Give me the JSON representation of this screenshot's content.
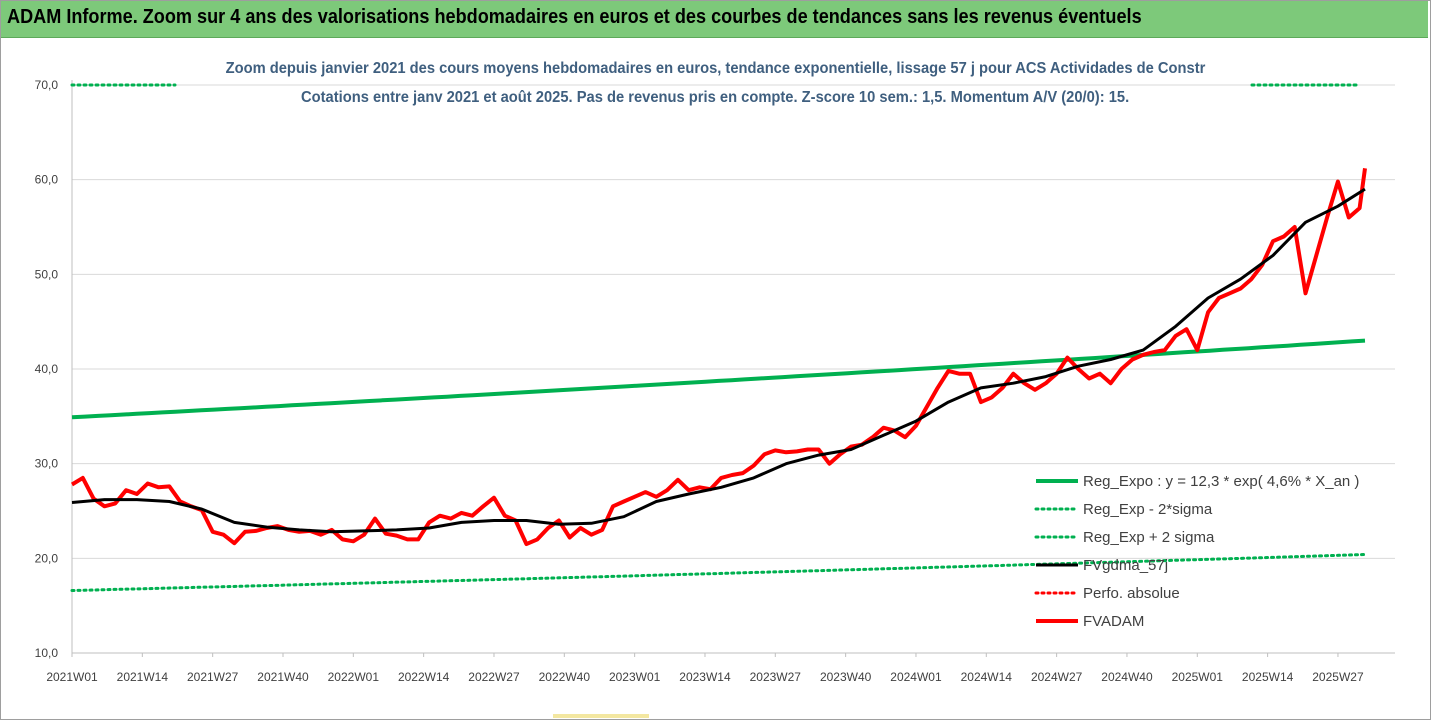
{
  "banner": {
    "title": "ADAM Informe. Zoom sur 4 ans des valorisations hebdomadaires en euros et des courbes de tendances sans les revenus éventuels",
    "color": "#7dc97a"
  },
  "chart_data": {
    "type": "line",
    "title_line1": "Zoom depuis janvier 2021 des cours moyens hebdomadaires en euros, tendance exponentielle, lissage 57 j pour ACS Actividades de Constr",
    "title_line2": "Cotations entre janv 2021 et août 2025. Pas de revenus pris en compte. Z-score 10 sem.: 1,5. Momentum A/V (20/0): 15.",
    "ylim": [
      10,
      70
    ],
    "y_ticks": [
      "10,0",
      "20,0",
      "30,0",
      "40,0",
      "50,0",
      "60,0",
      "70,0"
    ],
    "x_ticks": [
      "2021W01",
      "2021W14",
      "2021W27",
      "2021W40",
      "2022W01",
      "2022W14",
      "2022W27",
      "2022W40",
      "2023W01",
      "2023W14",
      "2023W27",
      "2023W40",
      "2024W01",
      "2024W14",
      "2024W27",
      "2024W40",
      "2025W01",
      "2025W14",
      "2025W27"
    ],
    "x_weeks": [
      0,
      239
    ],
    "grid": true,
    "legend_position": "bottom-right",
    "series": [
      {
        "name": "Reg_Expo : y = 12,3 * exp( 4,6% *  X_an )",
        "color": "#00b050",
        "style": "solid",
        "x": [
          0,
          239
        ],
        "exp_start": 34.9,
        "exp_end": 43.0
      },
      {
        "name": "Reg_Exp - 2*sigma",
        "color": "#00b050",
        "style": "dotted",
        "x": [
          0,
          239
        ],
        "exp_start": 16.6,
        "exp_end": 20.4
      },
      {
        "name": "Reg_Exp + 2 sigma",
        "color": "#00b050",
        "style": "dotted",
        "x": [
          0,
          239
        ],
        "exp_start": 70.0,
        "exp_end": 70.0
      },
      {
        "name": "FVgdma_57j",
        "color": "#000000",
        "style": "solid",
        "x": [
          0,
          6,
          12,
          18,
          24,
          30,
          36,
          42,
          48,
          54,
          60,
          66,
          72,
          78,
          84,
          90,
          96,
          102,
          108,
          114,
          120,
          126,
          132,
          138,
          144,
          150,
          156,
          162,
          168,
          174,
          180,
          186,
          192,
          198,
          204,
          210,
          216,
          222,
          228,
          234,
          239
        ],
        "y": [
          25.9,
          26.2,
          26.2,
          26.0,
          25.2,
          23.8,
          23.3,
          23.0,
          22.8,
          22.9,
          23.0,
          23.2,
          23.8,
          24.0,
          24.0,
          23.6,
          23.7,
          24.4,
          26.0,
          26.8,
          27.5,
          28.5,
          30.0,
          30.9,
          31.5,
          33.0,
          34.5,
          36.5,
          38.0,
          38.5,
          39.2,
          40.3,
          41.0,
          42.0,
          44.5,
          47.5,
          49.5,
          52.0,
          55.5,
          57.2,
          59.0
        ]
      },
      {
        "name": "Perfo. absolue",
        "color": "#ff0000",
        "style": "dotted",
        "x": [],
        "y": []
      },
      {
        "name": "FVADAM",
        "color": "#ff0000",
        "style": "solid",
        "x": [
          0,
          2,
          4,
          6,
          8,
          10,
          12,
          14,
          16,
          18,
          20,
          22,
          24,
          26,
          28,
          30,
          32,
          34,
          36,
          38,
          40,
          42,
          44,
          46,
          48,
          50,
          52,
          54,
          56,
          58,
          60,
          62,
          64,
          66,
          68,
          70,
          72,
          74,
          76,
          78,
          80,
          82,
          84,
          86,
          88,
          90,
          92,
          94,
          96,
          98,
          100,
          102,
          104,
          106,
          108,
          110,
          112,
          114,
          116,
          118,
          120,
          122,
          124,
          126,
          128,
          130,
          132,
          134,
          136,
          138,
          140,
          142,
          144,
          146,
          148,
          150,
          152,
          154,
          156,
          158,
          160,
          162,
          164,
          166,
          168,
          170,
          172,
          174,
          176,
          178,
          180,
          182,
          184,
          186,
          188,
          190,
          192,
          194,
          196,
          198,
          200,
          202,
          204,
          206,
          208,
          210,
          212,
          214,
          216,
          218,
          220,
          222,
          224,
          226,
          228,
          230,
          232,
          234,
          236,
          238,
          239
        ],
        "y": [
          27.8,
          28.5,
          26.3,
          25.5,
          25.8,
          27.2,
          26.8,
          27.9,
          27.5,
          27.6,
          26.0,
          25.5,
          25.1,
          22.8,
          22.5,
          21.6,
          22.8,
          22.9,
          23.2,
          23.4,
          23.0,
          22.8,
          22.9,
          22.5,
          23.0,
          22.0,
          21.8,
          22.5,
          24.2,
          22.6,
          22.4,
          22.0,
          22.0,
          23.8,
          24.5,
          24.2,
          24.8,
          24.5,
          25.5,
          26.4,
          24.5,
          24.0,
          21.5,
          22.0,
          23.2,
          24.0,
          22.2,
          23.2,
          22.5,
          23.0,
          25.5,
          26.0,
          26.5,
          27.0,
          26.5,
          27.2,
          28.3,
          27.2,
          27.5,
          27.3,
          28.5,
          28.8,
          29.0,
          29.8,
          31.0,
          31.4,
          31.2,
          31.3,
          31.5,
          31.5,
          30.0,
          31.0,
          31.8,
          32.0,
          32.8,
          33.8,
          33.5,
          32.8,
          34.0,
          36.0,
          38.0,
          39.8,
          39.5,
          39.5,
          36.5,
          37.0,
          38.0,
          39.5,
          38.5,
          37.8,
          38.5,
          39.5,
          41.2,
          40.0,
          39.0,
          39.5,
          38.5,
          40.0,
          41.0,
          41.5,
          41.8,
          42.0,
          43.5,
          44.2,
          42.0,
          46.0,
          47.5,
          48.0,
          48.5,
          49.5,
          51.0,
          53.5,
          54.0,
          55.0,
          48.0,
          52.0,
          56.0,
          59.8,
          56.0,
          57.0,
          61.2
        ]
      }
    ]
  }
}
